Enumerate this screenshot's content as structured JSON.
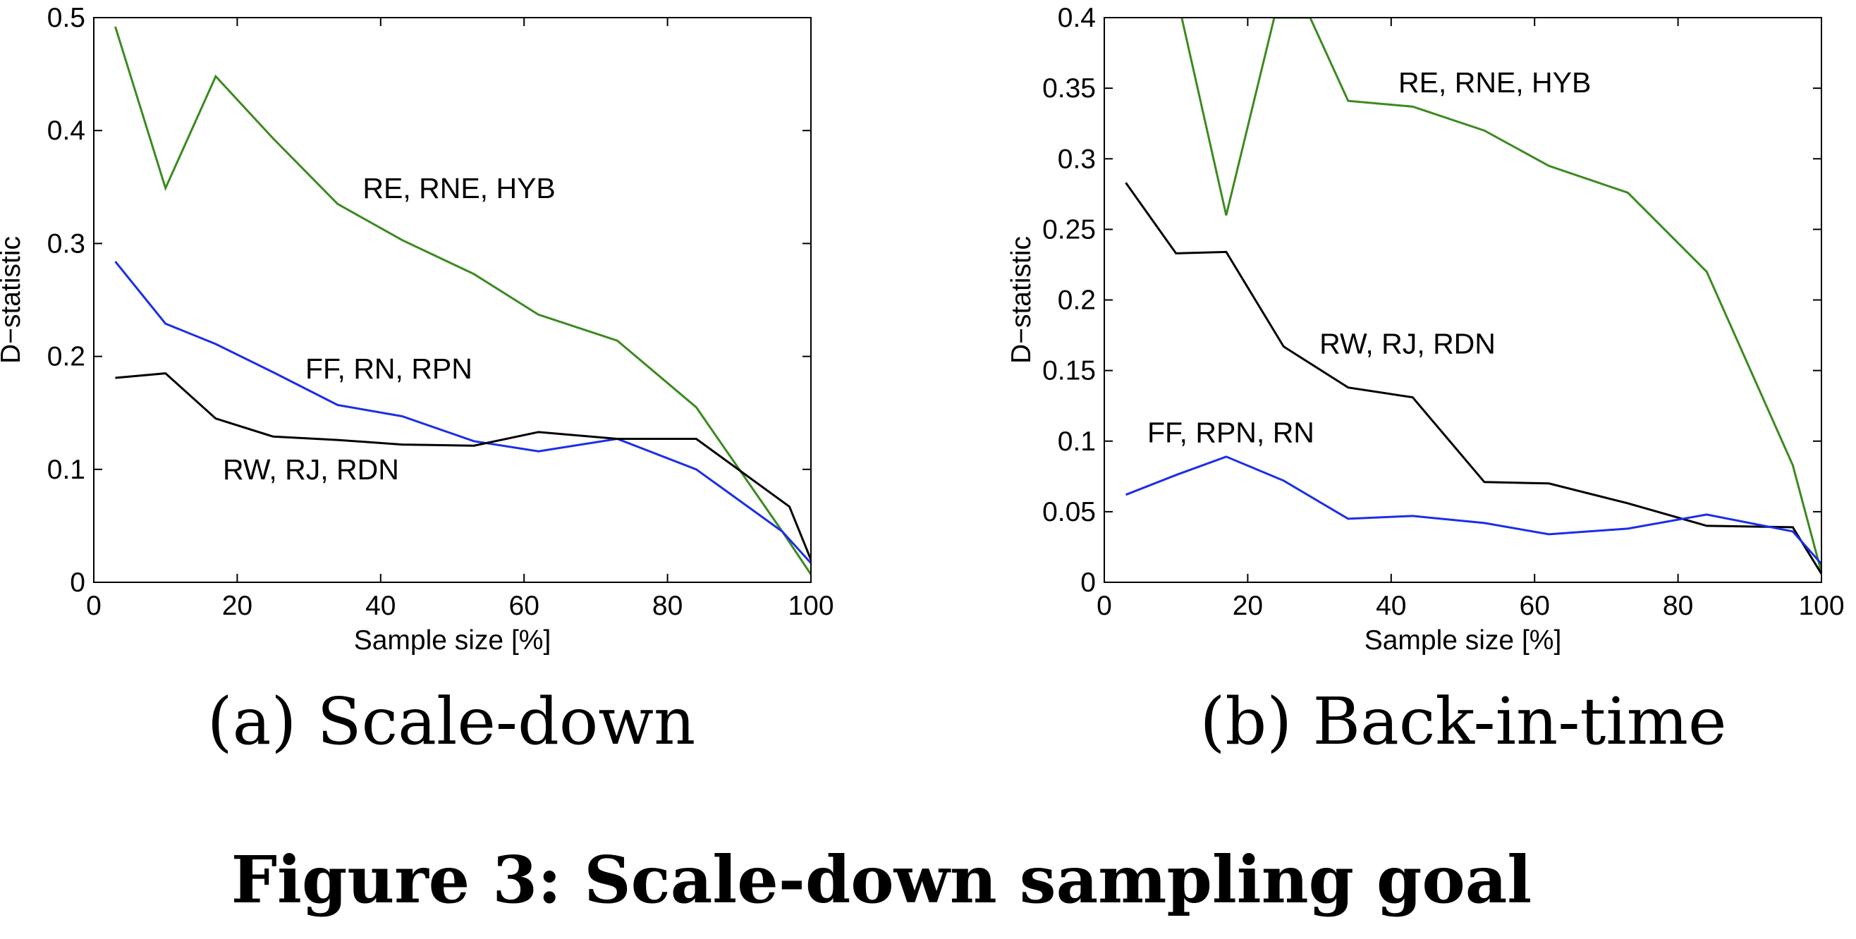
{
  "chart_data": [
    {
      "type": "line",
      "xlabel": "Sample size [%]",
      "ylabel": "D−statistic",
      "xlim": [
        0,
        100
      ],
      "ylim": [
        0,
        0.5
      ],
      "xticks": [
        "0",
        "20",
        "40",
        "60",
        "80",
        "100"
      ],
      "yticks": [
        "0",
        "0.1",
        "0.2",
        "0.3",
        "0.4",
        "0.5"
      ],
      "caption": "(a) Scale-down",
      "colors": {
        "green": "#3b8a1f",
        "blue": "#1a2ee8",
        "black": "#000000"
      },
      "series": [
        {
          "color": "green",
          "x": [
            3,
            10,
            17,
            25,
            34,
            43,
            53,
            62,
            73,
            84,
            96,
            100
          ],
          "y": [
            0.492,
            0.349,
            0.448,
            0.393,
            0.335,
            0.303,
            0.273,
            0.237,
            0.214,
            0.155,
            0.045,
            0.007
          ]
        },
        {
          "color": "blue",
          "x": [
            3,
            10,
            17,
            25,
            34,
            43,
            53,
            62,
            73,
            84,
            96,
            100
          ],
          "y": [
            0.284,
            0.229,
            0.211,
            0.186,
            0.157,
            0.147,
            0.125,
            0.116,
            0.127,
            0.1,
            0.045,
            0.017
          ]
        },
        {
          "color": "black",
          "x": [
            3,
            10,
            17,
            25,
            34,
            43,
            53,
            62,
            73,
            84,
            97,
            100
          ],
          "y": [
            0.181,
            0.185,
            0.145,
            0.129,
            0.126,
            0.122,
            0.121,
            0.133,
            0.127,
            0.127,
            0.067,
            0.02
          ]
        }
      ],
      "annotations": [
        {
          "text": "RE, RNE, HYB",
          "x": 37.5,
          "y": 0.349
        },
        {
          "text": "FF, RN, RPN",
          "x": 29.5,
          "y": 0.189
        },
        {
          "text": "RW, RJ, RDN",
          "x": 18,
          "y": 0.1
        }
      ]
    },
    {
      "type": "line",
      "xlabel": "Sample size [%]",
      "ylabel": "D−statistic",
      "xlim": [
        0,
        100
      ],
      "ylim": [
        0,
        0.4
      ],
      "xticks": [
        "0",
        "20",
        "40",
        "60",
        "80",
        "100"
      ],
      "yticks": [
        "0",
        "0.05",
        "0.1",
        "0.15",
        "0.2",
        "0.25",
        "0.3",
        "0.35",
        "0.4"
      ],
      "caption": "(b) Back-in-time",
      "colors": {
        "green": "#3b8a1f",
        "blue": "#1a2ee8",
        "black": "#000000"
      },
      "series": [
        {
          "color": "green",
          "x": [
            10.8,
            17,
            23.7,
            28.7,
            34,
            43,
            53,
            62,
            73,
            84,
            96,
            100
          ],
          "y": [
            0.4,
            0.26,
            0.4,
            0.4,
            0.341,
            0.337,
            0.32,
            0.295,
            0.276,
            0.22,
            0.083,
            0.007
          ]
        },
        {
          "color": "black",
          "x": [
            3,
            10,
            17,
            25,
            34,
            43,
            53,
            62,
            73,
            84,
            96,
            100
          ],
          "y": [
            0.283,
            0.233,
            0.234,
            0.167,
            0.138,
            0.131,
            0.071,
            0.07,
            0.056,
            0.04,
            0.039,
            0.006
          ]
        },
        {
          "color": "blue",
          "x": [
            3,
            10,
            17,
            25,
            34,
            43,
            53,
            62,
            73,
            84,
            96,
            100
          ],
          "y": [
            0.062,
            0.076,
            0.089,
            0.072,
            0.045,
            0.047,
            0.042,
            0.034,
            0.038,
            0.048,
            0.036,
            0.013
          ]
        }
      ],
      "annotations": [
        {
          "text": "RE, RNE, HYB",
          "x": 41,
          "y": 0.354
        },
        {
          "text": "RW, RJ, RDN",
          "x": 30,
          "y": 0.169
        },
        {
          "text": "FF, RPN, RN",
          "x": 6,
          "y": 0.106
        }
      ]
    }
  ],
  "figure_caption": "Figure 3:  Scale-down sampling goal"
}
